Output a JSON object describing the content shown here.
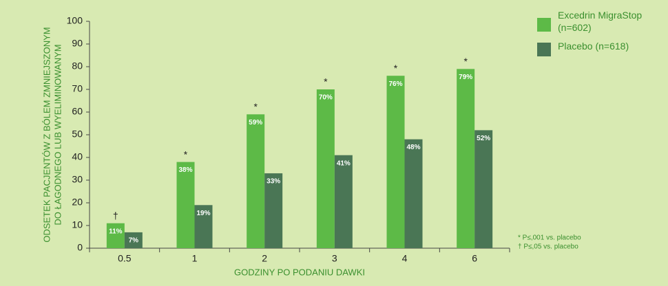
{
  "chart_data": {
    "type": "bar",
    "categories": [
      "0.5",
      "1",
      "2",
      "3",
      "4",
      "6"
    ],
    "series": [
      {
        "name": "Excedrin MigraStop (n=602)",
        "color": "#5dba47",
        "values": [
          11,
          38,
          59,
          70,
          76,
          79
        ],
        "value_labels": [
          "11%",
          "38%",
          "59%",
          "70%",
          "76%",
          "79%"
        ]
      },
      {
        "name": "Placebo (n=618)",
        "color": "#4a7655",
        "values": [
          7,
          19,
          33,
          41,
          48,
          52
        ],
        "value_labels": [
          "7%",
          "19%",
          "33%",
          "41%",
          "48%",
          "52%"
        ]
      }
    ],
    "annotations": [
      "†",
      "*",
      "*",
      "*",
      "*",
      "*"
    ],
    "ylim": [
      0,
      100
    ],
    "yticks": [
      0,
      10,
      20,
      30,
      40,
      50,
      60,
      70,
      80,
      90,
      100
    ],
    "y_label": [
      "ODSETEK PACJENTÓW Z BÓLEM ZMNIEJSZONYM",
      "DO ŁAGODNEGO LUB WYELIMINOWANYM"
    ],
    "x_label": "GODZINY PO PODANIU DAWKI",
    "footnotes": [
      "* P≤,001 vs. placebo",
      "† P≤,05 vs. placebo"
    ],
    "grid": false
  }
}
